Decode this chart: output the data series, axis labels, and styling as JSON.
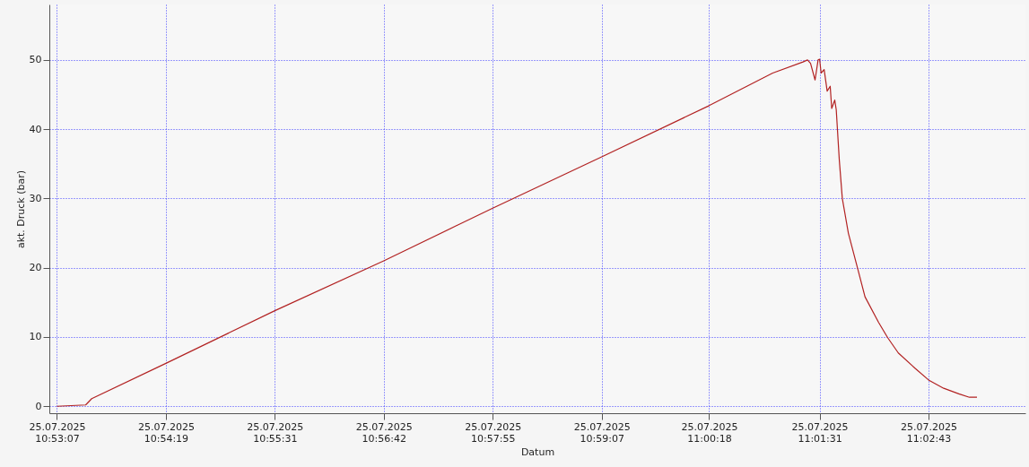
{
  "chart_data": {
    "type": "line",
    "xlabel": "Datum",
    "ylabel": "akt. Druck (bar)",
    "x": [
      "2025-07-25T10:53:07",
      "2025-07-25T10:53:26",
      "2025-07-25T10:53:30",
      "2025-07-25T10:54:19",
      "2025-07-25T10:55:31",
      "2025-07-25T10:56:43",
      "2025-07-25T10:57:55",
      "2025-07-25T10:59:07",
      "2025-07-25T11:00:18",
      "2025-07-25T11:01:00",
      "2025-07-25T11:01:20",
      "2025-07-25T11:01:23",
      "2025-07-25T11:01:25",
      "2025-07-25T11:01:28",
      "2025-07-25T11:01:30",
      "2025-07-25T11:01:31",
      "2025-07-25T11:01:32",
      "2025-07-25T11:01:34",
      "2025-07-25T11:01:36",
      "2025-07-25T11:01:38",
      "2025-07-25T11:01:39",
      "2025-07-25T11:01:41",
      "2025-07-25T11:01:42",
      "2025-07-25T11:01:44",
      "2025-07-25T11:01:46",
      "2025-07-25T11:01:50",
      "2025-07-25T11:01:56",
      "2025-07-25T11:02:01",
      "2025-07-25T11:02:10",
      "2025-07-25T11:02:16",
      "2025-07-25T11:02:23",
      "2025-07-25T11:02:34",
      "2025-07-25T11:02:43",
      "2025-07-25T11:02:53",
      "2025-07-25T11:03:03",
      "2025-07-25T11:03:10",
      "2025-07-25T11:03:15"
    ],
    "series": [
      {
        "color": "#b22222",
        "values": [
          0,
          0.2,
          1.1,
          6.2,
          13.8,
          21.0,
          28.6,
          36.0,
          43.4,
          48.1,
          49.7,
          50.0,
          49.5,
          47.1,
          50.0,
          50.1,
          48.1,
          48.6,
          45.5,
          46.2,
          43.0,
          44.2,
          42.8,
          35.6,
          30.0,
          25.0,
          20.0,
          15.8,
          12.1,
          9.9,
          7.7,
          5.5,
          3.8,
          2.6,
          1.8,
          1.3,
          1.3
        ]
      }
    ],
    "xlim": [
      "2025-07-25T10:53:02",
      "2025-07-25T11:03:47"
    ],
    "xticks": [
      {
        "value": "2025-07-25T10:53:07",
        "label": "25.07.2025 10:53:07"
      },
      {
        "value": "2025-07-25T10:54:19",
        "label": "25.07.2025 10:54:19"
      },
      {
        "value": "2025-07-25T10:55:31",
        "label": "25.07.2025 10:55:31"
      },
      {
        "value": "2025-07-25T10:56:43",
        "label": "25.07.2025 10:56:42"
      },
      {
        "value": "2025-07-25T10:57:55",
        "label": "25.07.2025 10:57:55"
      },
      {
        "value": "2025-07-25T10:59:07",
        "label": "25.07.2025 10:59:07"
      },
      {
        "value": "2025-07-25T11:00:18",
        "label": "25.07.2025 11:00:18"
      },
      {
        "value": "2025-07-25T11:01:31",
        "label": "25.07.2025 11:01:31"
      },
      {
        "value": "2025-07-25T11:02:43",
        "label": "25.07.2025 11:02:43"
      }
    ],
    "ylim": [
      -1,
      58
    ],
    "yticks": [
      0,
      10,
      20,
      30,
      40,
      50
    ],
    "grid": true,
    "marker": "none",
    "line_style": "solid"
  }
}
